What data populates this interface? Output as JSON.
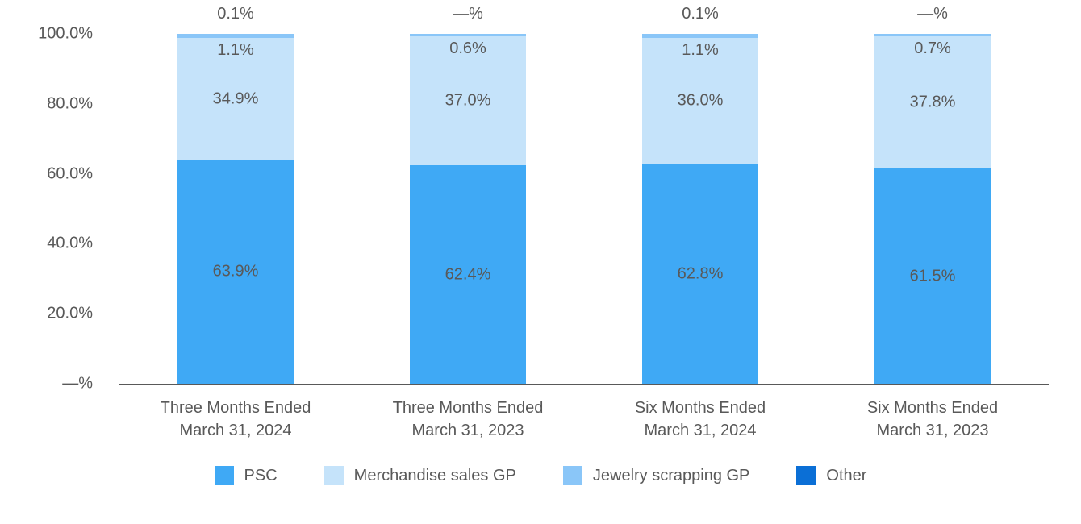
{
  "chart_data": {
    "type": "bar",
    "variant": "stacked-100-percent",
    "title": "",
    "background": "#FFFFFF",
    "text_color": "#595959",
    "axis_color": "#595959",
    "grid": false,
    "legend_position": "bottom",
    "y_axis": {
      "min": 0,
      "max": 100,
      "ticks": [
        "100.0%",
        "80.0%",
        "60.0%",
        "40.0%",
        "20.0%",
        "—%"
      ]
    },
    "categories": [
      {
        "line1": "Three Months Ended",
        "line2": "March 31, 2024"
      },
      {
        "line1": "Three Months Ended",
        "line2": "March 31, 2023"
      },
      {
        "line1": "Six Months Ended",
        "line2": "March 31, 2024"
      },
      {
        "line1": "Six Months Ended",
        "line2": "March 31, 2023"
      }
    ],
    "series": [
      {
        "name": "PSC",
        "color": "#3FA9F5",
        "values": [
          63.9,
          62.4,
          62.8,
          61.5
        ],
        "labels": [
          "63.9%",
          "62.4%",
          "62.8%",
          "61.5%"
        ]
      },
      {
        "name": "Merchandise sales GP",
        "color": "#C5E3FA",
        "values": [
          34.9,
          37.0,
          36.0,
          37.8
        ],
        "labels": [
          "34.9%",
          "37.0%",
          "36.0%",
          "37.8%"
        ]
      },
      {
        "name": "Jewelry scrapping GP",
        "color": "#8AC6F8",
        "values": [
          1.1,
          0.6,
          1.1,
          0.7
        ],
        "labels": [
          "1.1%",
          "0.6%",
          "1.1%",
          "0.7%"
        ]
      },
      {
        "name": "Other",
        "color": "#0B6FD6",
        "values": [
          0.1,
          0.0,
          0.1,
          0.0
        ],
        "labels": [
          "0.1%",
          "—%",
          "0.1%",
          "—%"
        ]
      }
    ]
  }
}
